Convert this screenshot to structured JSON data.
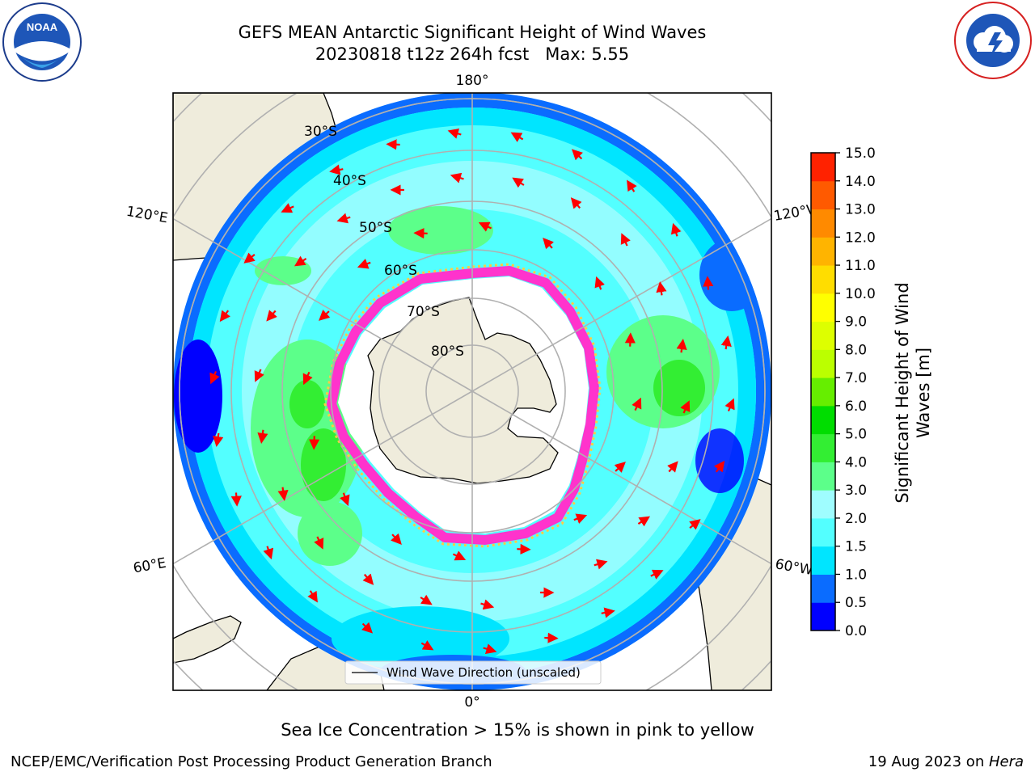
{
  "title_line1": "GEFS MEAN Antarctic Significant Height of Wind Waves",
  "title_line2": "20230818 t12z 264h fcst   Max: 5.55",
  "caption": "Sea Ice Concentration > 15% is shown in pink to yellow",
  "footer_left": "NCEP/EMC/Verification Post Processing Product Generation Branch",
  "footer_date": "19 Aug 2023 on ",
  "footer_host": "Hera",
  "noaa_logo_text": "NOAA",
  "noaa_ring_text": "NATIONAL OCEANIC AND ATMOSPHERIC ADMINISTRATION · U.S. DEPARTMENT OF COMMERCE",
  "nws_ring_text": "NATIONAL WEATHER SERVICE",
  "longitude_labels": {
    "top": "180°",
    "bottom": "0°",
    "upper_left": "120°E",
    "lower_left": "60°E",
    "upper_right": "120°W",
    "lower_right": "60°W"
  },
  "latitude_labels": [
    "30°S",
    "40°S",
    "50°S",
    "60°S",
    "70°S",
    "80°S"
  ],
  "legend_label": "Wind Wave Direction (unscaled)",
  "colorbar": {
    "label_line1": "Significant Height of Wind",
    "label_line2": "Waves [m]",
    "ticks": [
      "0.0",
      "0.5",
      "1.0",
      "1.5",
      "2.0",
      "3.0",
      "4.0",
      "5.0",
      "6.0",
      "7.0",
      "8.0",
      "9.0",
      "10.0",
      "11.0",
      "12.0",
      "13.0",
      "14.0",
      "15.0"
    ],
    "colors": [
      "#0000ff",
      "#0a6cff",
      "#00e5ff",
      "#53ffff",
      "#9ffdff",
      "#5cff8a",
      "#33ee33",
      "#00dd00",
      "#66ee00",
      "#bbff00",
      "#ddff00",
      "#ffff00",
      "#ffdd00",
      "#ffb400",
      "#ff8a00",
      "#ff5a00",
      "#ff2200"
    ]
  },
  "palette": {
    "land": "#efecdc",
    "ice_free_interior": "#ffffff",
    "ocean_base": "#53ffff",
    "open_ocean_outer": "#0a6cff",
    "ice_edge": "#ff33cc",
    "arrow": "#ff0000",
    "grid": "#b0b0b0"
  }
}
